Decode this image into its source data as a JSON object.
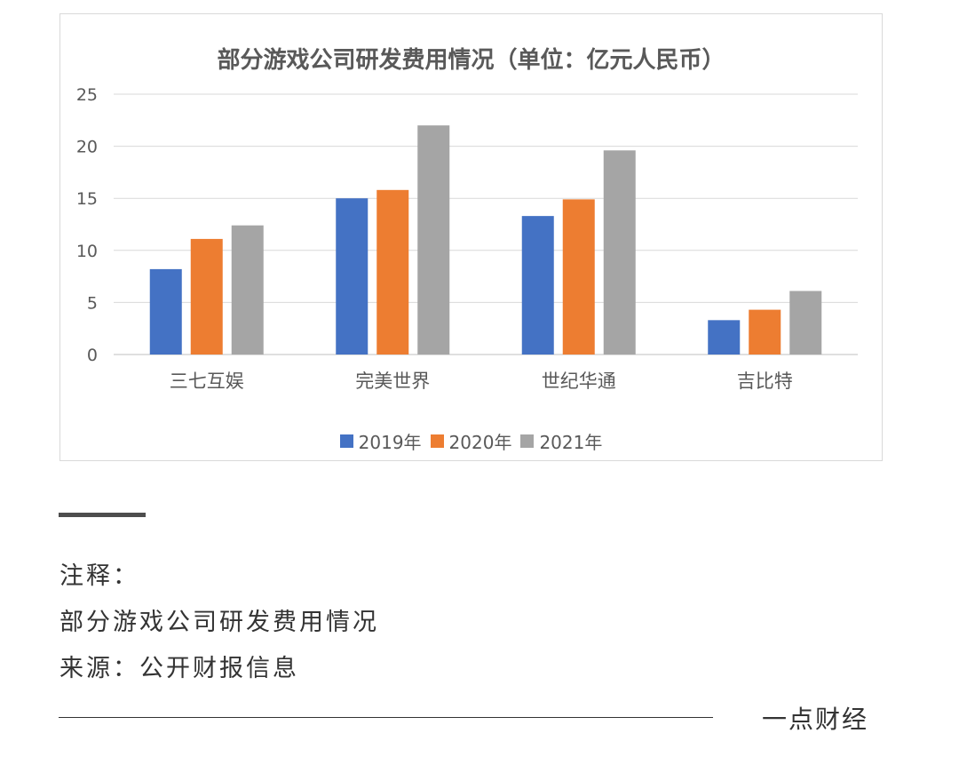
{
  "chart_data": {
    "type": "bar",
    "title": "部分游戏公司研发费用情况（单位：亿元人民币）",
    "categories": [
      "三七互娱",
      "完美世界",
      "世纪华通",
      "吉比特"
    ],
    "series": [
      {
        "name": "2019年",
        "color": "#4472c4",
        "values": [
          8.2,
          15.0,
          13.3,
          3.3
        ]
      },
      {
        "name": "2020年",
        "color": "#ed7d31",
        "values": [
          11.1,
          15.8,
          14.9,
          4.3
        ]
      },
      {
        "name": "2021年",
        "color": "#a5a5a5",
        "values": [
          12.4,
          22.0,
          19.6,
          6.1
        ]
      }
    ],
    "ylim": [
      0,
      25
    ],
    "yticks": [
      "0",
      "5",
      "10",
      "15",
      "20",
      "25"
    ],
    "grid": true,
    "legend_position": "bottom"
  },
  "notes": {
    "label": "注释：",
    "line1": "部分游戏公司研发费用情况",
    "line2": "来源：公开财报信息"
  },
  "brand": "一点财经"
}
